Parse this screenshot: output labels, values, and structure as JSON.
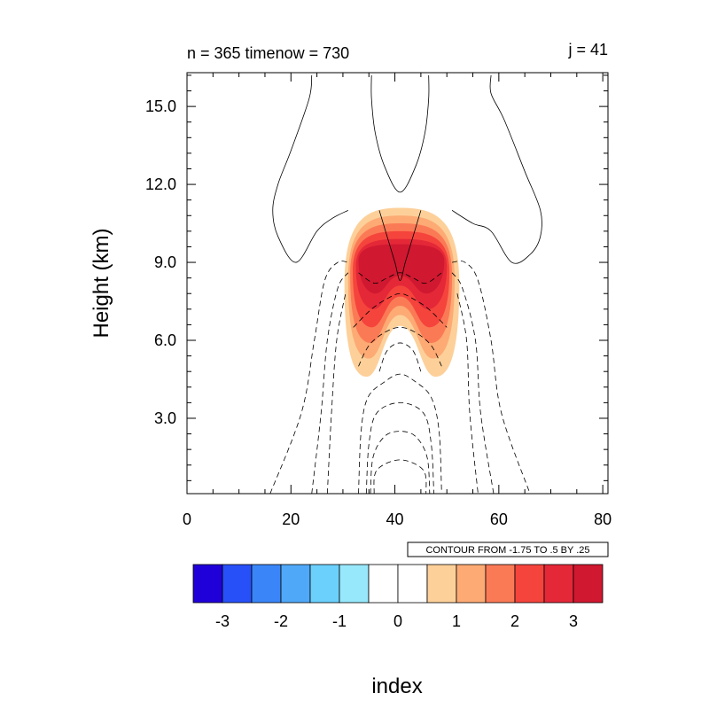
{
  "chart_data": {
    "type": "contour",
    "title_left": "n = 365 timenow = 730",
    "title_right": "j = 41",
    "xlabel": "index",
    "ylabel": "Height (km)",
    "xlim": [
      0,
      81
    ],
    "ylim": [
      0.1,
      16.3
    ],
    "x_ticks": [
      {
        "value": 0,
        "label": "0"
      },
      {
        "value": 20,
        "label": "20"
      },
      {
        "value": 40,
        "label": "40"
      },
      {
        "value": 60,
        "label": "60"
      },
      {
        "value": 80,
        "label": "80"
      }
    ],
    "y_ticks": [
      {
        "value": 3.0,
        "label": "3.0"
      },
      {
        "value": 6.0,
        "label": "6.0"
      },
      {
        "value": 9.0,
        "label": "9.0"
      },
      {
        "value": 12.0,
        "label": "12.0"
      },
      {
        "value": 15.0,
        "label": "15.0"
      }
    ],
    "info_label": "CONTOUR FROM -1.75 TO .5 BY .25",
    "fill_field": {
      "center_x": 41,
      "levels": [
        0.5,
        1.0,
        1.5,
        2.0,
        2.5,
        3.0
      ],
      "shells": [
        {
          "level": 0.5,
          "x_min": 30.3,
          "x_max": 52.4,
          "y_min": 4.6,
          "y_max": 11.1
        },
        {
          "level": 1.0,
          "x_min": 31.0,
          "x_max": 51.5,
          "y_min": 5.3,
          "y_max": 10.8
        },
        {
          "level": 1.5,
          "x_min": 31.4,
          "x_max": 51.0,
          "y_min": 5.9,
          "y_max": 10.5
        },
        {
          "level": 2.0,
          "x_min": 31.9,
          "x_max": 50.5,
          "y_min": 6.5,
          "y_max": 10.2
        },
        {
          "level": 2.5,
          "x_min": 32.5,
          "x_max": 50.0,
          "y_min": 7.2,
          "y_max": 9.9
        },
        {
          "level": 3.0,
          "x_min": 33.0,
          "x_max": 49.5,
          "y_min": 7.8,
          "y_max": 9.7
        }
      ]
    },
    "contour_lines": [
      {
        "level": 0.5,
        "style": "solid",
        "points": [
          [
            24.0,
            16.2
          ],
          [
            23.5,
            15.3
          ],
          [
            20.0,
            13.3
          ],
          [
            17.5,
            12.0
          ],
          [
            16.5,
            11.0
          ],
          [
            17.5,
            10.0
          ],
          [
            21.0,
            9.0
          ],
          [
            25.0,
            10.2
          ],
          [
            28.0,
            10.7
          ],
          [
            31.0,
            11.0
          ]
        ]
      },
      {
        "level": 0.5,
        "style": "solid",
        "points": [
          [
            51.0,
            11.0
          ],
          [
            55.0,
            10.5
          ],
          [
            58.5,
            10.2
          ],
          [
            62.5,
            9.0
          ],
          [
            66.0,
            9.3
          ],
          [
            68.0,
            10.0
          ],
          [
            68.0,
            11.0
          ],
          [
            65.0,
            12.5
          ],
          [
            61.0,
            14.5
          ],
          [
            58.5,
            15.5
          ],
          [
            58.5,
            16.2
          ]
        ]
      },
      {
        "level": 0.5,
        "style": "solid",
        "points": [
          [
            35.5,
            16.2
          ],
          [
            35.5,
            15.3
          ],
          [
            36.2,
            14.0
          ],
          [
            38.0,
            12.7
          ],
          [
            41.0,
            11.7
          ],
          [
            44.0,
            12.7
          ],
          [
            45.8,
            14.0
          ],
          [
            46.5,
            15.3
          ],
          [
            46.5,
            16.2
          ]
        ]
      },
      {
        "level": 0.25,
        "style": "solid",
        "points": [
          [
            37.0,
            11.0
          ],
          [
            38.5,
            10.0
          ],
          [
            40.0,
            9.0
          ],
          [
            41.0,
            8.3
          ],
          [
            42.0,
            9.0
          ],
          [
            43.5,
            10.0
          ],
          [
            45.0,
            11.0
          ]
        ]
      },
      {
        "level": -0.25,
        "style": "dashed",
        "points": [
          [
            16.0,
            0.1
          ],
          [
            22.0,
            3.2
          ],
          [
            24.5,
            6.0
          ],
          [
            26.5,
            8.3
          ],
          [
            29.0,
            9.0
          ],
          [
            31.0,
            9.0
          ]
        ]
      },
      {
        "level": -0.25,
        "style": "dashed",
        "points": [
          [
            51.0,
            9.0
          ],
          [
            53.5,
            9.0
          ],
          [
            56.0,
            8.3
          ],
          [
            58.5,
            6.0
          ],
          [
            60.5,
            3.2
          ],
          [
            66.0,
            0.1
          ]
        ]
      },
      {
        "level": -0.5,
        "style": "dashed",
        "points": [
          [
            24.0,
            0.1
          ],
          [
            25.8,
            3.2
          ],
          [
            27.0,
            6.0
          ],
          [
            29.0,
            8.0
          ],
          [
            31.0,
            8.6
          ]
        ]
      },
      {
        "level": -0.5,
        "style": "dashed",
        "points": [
          [
            51.0,
            8.6
          ],
          [
            53.0,
            8.0
          ],
          [
            55.5,
            6.0
          ],
          [
            56.5,
            3.2
          ],
          [
            59.0,
            0.1
          ]
        ]
      },
      {
        "level": -0.75,
        "style": "dashed",
        "points": [
          [
            27.0,
            0.1
          ],
          [
            27.8,
            3.2
          ],
          [
            28.8,
            6.0
          ],
          [
            30.5,
            7.8
          ]
        ]
      },
      {
        "level": -0.75,
        "style": "dashed",
        "points": [
          [
            52.0,
            7.8
          ],
          [
            53.8,
            6.0
          ],
          [
            54.4,
            3.2
          ],
          [
            56.0,
            0.1
          ]
        ]
      },
      {
        "level": -1.0,
        "style": "dashed",
        "points": [
          [
            33.0,
            0.1
          ],
          [
            33.5,
            2.5
          ],
          [
            34.8,
            3.8
          ],
          [
            38.0,
            4.4
          ],
          [
            41.0,
            4.7
          ],
          [
            44.0,
            4.4
          ],
          [
            47.0,
            3.8
          ],
          [
            48.5,
            2.5
          ],
          [
            49.0,
            0.1
          ]
        ]
      },
      {
        "level": -1.25,
        "style": "dashed",
        "points": [
          [
            34.5,
            0.1
          ],
          [
            35.0,
            2.0
          ],
          [
            36.5,
            3.2
          ],
          [
            41.0,
            3.6
          ],
          [
            45.5,
            3.2
          ],
          [
            47.0,
            2.0
          ],
          [
            47.5,
            0.1
          ]
        ]
      },
      {
        "level": -1.5,
        "style": "dashed",
        "points": [
          [
            35.3,
            0.1
          ],
          [
            35.8,
            1.5
          ],
          [
            38.0,
            2.3
          ],
          [
            41.0,
            2.5
          ],
          [
            44.0,
            2.3
          ],
          [
            46.2,
            1.5
          ],
          [
            46.7,
            0.1
          ]
        ]
      },
      {
        "level": -1.75,
        "style": "dashed",
        "points": [
          [
            36.0,
            0.1
          ],
          [
            36.5,
            1.0
          ],
          [
            41.0,
            1.4
          ],
          [
            45.5,
            1.0
          ],
          [
            46.0,
            0.1
          ]
        ]
      },
      {
        "level": -0.75,
        "style": "dashed",
        "points": [
          [
            33.0,
            5.0
          ],
          [
            35.0,
            5.8
          ],
          [
            38.0,
            6.3
          ],
          [
            41.0,
            6.5
          ],
          [
            44.0,
            6.3
          ],
          [
            47.0,
            5.8
          ],
          [
            49.0,
            5.0
          ]
        ]
      },
      {
        "level": -0.5,
        "style": "dashed",
        "points": [
          [
            32.0,
            6.5
          ],
          [
            35.5,
            7.2
          ],
          [
            38.5,
            7.6
          ],
          [
            41.0,
            7.8
          ],
          [
            43.5,
            7.6
          ],
          [
            46.5,
            7.2
          ],
          [
            50.0,
            6.5
          ]
        ]
      },
      {
        "level": -0.25,
        "style": "dashed",
        "points": [
          [
            33.0,
            8.6
          ],
          [
            36.0,
            8.2
          ],
          [
            38.5,
            8.4
          ],
          [
            41.0,
            8.6
          ],
          [
            43.5,
            8.4
          ],
          [
            46.0,
            8.2
          ],
          [
            49.0,
            8.6
          ]
        ]
      },
      {
        "level": -1.0,
        "style": "dashed",
        "points": [
          [
            37.0,
            4.8
          ],
          [
            38.5,
            5.6
          ],
          [
            41.0,
            5.9
          ],
          [
            43.5,
            5.6
          ],
          [
            45.0,
            4.8
          ]
        ]
      }
    ]
  },
  "colorbar": {
    "colors": [
      "#2000d8",
      "#2850f8",
      "#3a86f8",
      "#50a8f8",
      "#6cd0fc",
      "#98e8fc",
      "#ffffff",
      "#ffffff",
      "#fdd09a",
      "#fdaa74",
      "#fb7a56",
      "#f5443c",
      "#e42838",
      "#d01830"
    ],
    "labels": [
      "-3",
      "-2",
      "-1",
      "0",
      "1",
      "2",
      "3"
    ]
  }
}
